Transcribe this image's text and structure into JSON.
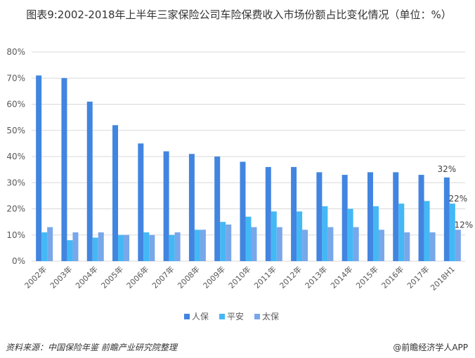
{
  "title": "图表9:2002-2018年上半年三家保险公司车险保费收入市场份额占比变化情况（单位：%）",
  "source": "资料来源：中国保险年鉴 前瞻产业研究院整理",
  "brand": "@前瞻经济学人APP",
  "chart_data": {
    "type": "bar",
    "title": "图表9:2002-2018年上半年三家保险公司车险保费收入市场份额占比变化情况（单位：%）",
    "categories": [
      "2002年",
      "2003年",
      "2004年",
      "2005年",
      "2006年",
      "2007年",
      "2008年",
      "2009年",
      "2010年",
      "2011年",
      "2012年",
      "2013年",
      "2014年",
      "2015年",
      "2016年",
      "2017年",
      "2018H1"
    ],
    "series": [
      {
        "name": "人保",
        "color": "#4285e0",
        "values": [
          71,
          70,
          61,
          52,
          45,
          42,
          41,
          40,
          38,
          36,
          36,
          34,
          33,
          34,
          34,
          33,
          32
        ]
      },
      {
        "name": "平安",
        "color": "#44b8f5",
        "values": [
          11,
          8,
          9,
          10,
          11,
          10,
          12,
          15,
          17,
          19,
          19,
          21,
          20,
          21,
          22,
          23,
          22
        ]
      },
      {
        "name": "太保",
        "color": "#78a7ea",
        "values": [
          13,
          11,
          11,
          10,
          10,
          11,
          12,
          14,
          13,
          13,
          12,
          13,
          13,
          12,
          11,
          11,
          12
        ]
      }
    ],
    "data_labels": [
      {
        "category": "2018H1",
        "labels": [
          "32%",
          "22%",
          "12%"
        ]
      }
    ],
    "yticks": [
      "0%",
      "10%",
      "20%",
      "30%",
      "40%",
      "50%",
      "60%",
      "70%",
      "80%"
    ],
    "ylim": [
      0,
      80
    ],
    "grid": true,
    "legend": "bottom"
  }
}
